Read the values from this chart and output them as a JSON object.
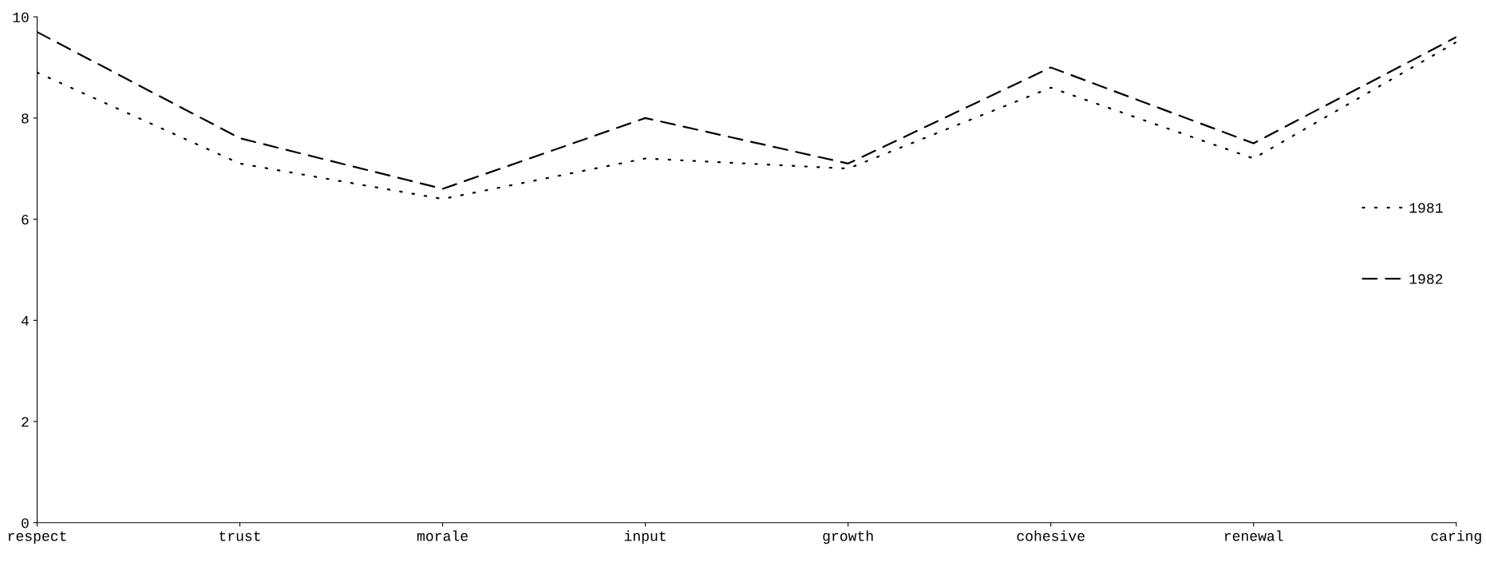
{
  "chart_data": {
    "type": "line",
    "categories": [
      "respect",
      "trust",
      "morale",
      "input",
      "growth",
      "cohesive",
      "renewal",
      "caring"
    ],
    "series": [
      {
        "name": "1981",
        "color": "#000000",
        "line_style": "dotted",
        "values": [
          8.9,
          7.1,
          6.4,
          7.2,
          7.0,
          8.6,
          7.2,
          9.5
        ]
      },
      {
        "name": "1982",
        "color": "#000000",
        "line_style": "dashed",
        "values": [
          9.7,
          7.6,
          6.6,
          8.0,
          7.1,
          9.0,
          7.5,
          9.6
        ]
      }
    ],
    "ylim": [
      0,
      10
    ],
    "yticks": [
      0,
      2,
      4,
      6,
      8,
      10
    ],
    "grid": false,
    "legend": "right",
    "marker": "none"
  }
}
